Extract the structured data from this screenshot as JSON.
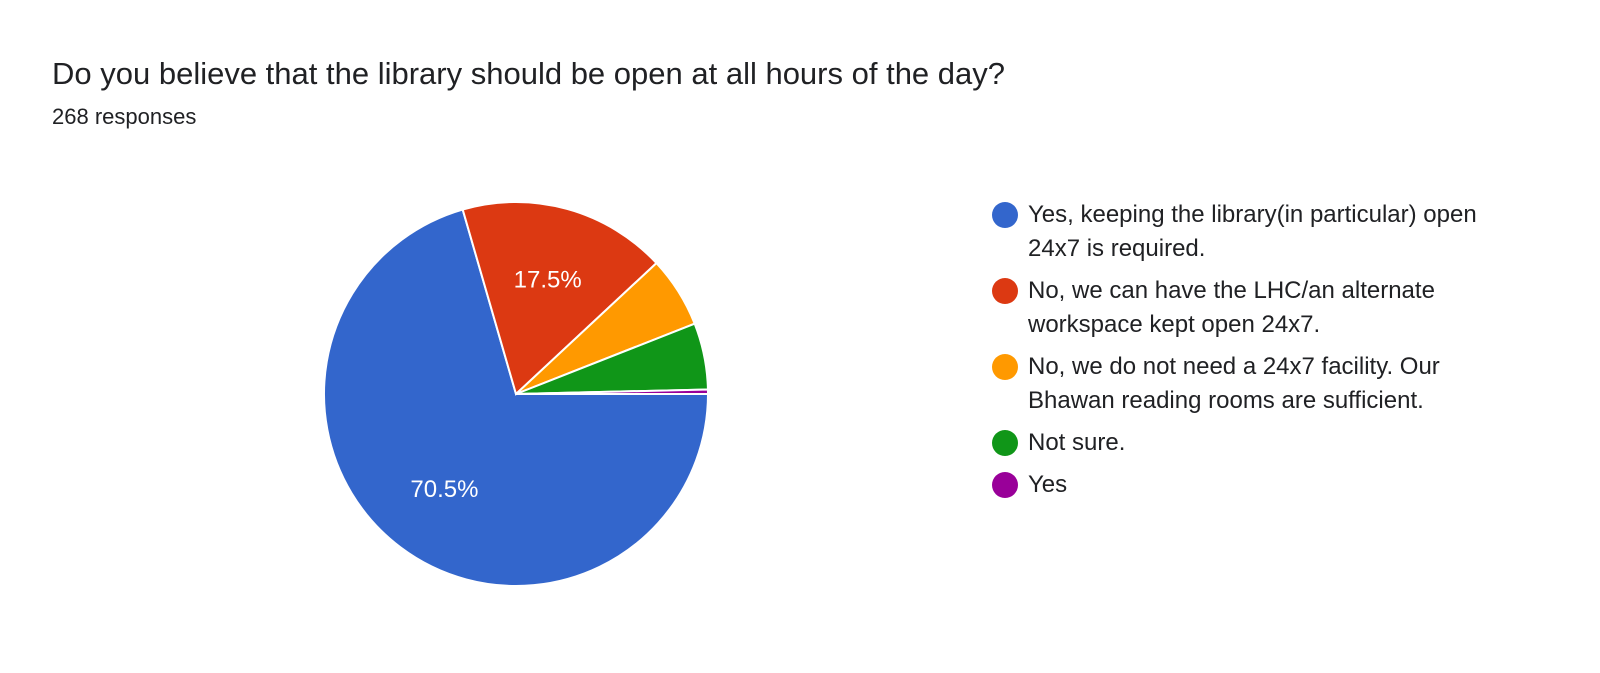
{
  "chart_data": {
    "type": "pie",
    "title": "Do you believe that the library should be open at all hours of the day?",
    "subtitle": "268 responses",
    "categories": [
      "Yes, keeping the library(in particular) open 24x7 is required.",
      "No, we can have the LHC/an alternate workspace kept open 24x7.",
      "No, we do not need a 24x7 facility. Our Bhawan reading rooms are sufficient.",
      "Not sure.",
      "Yes"
    ],
    "values": [
      189,
      47,
      16,
      15,
      1
    ],
    "data_labels": [
      "70.5%",
      "17.5%",
      "",
      "",
      ""
    ],
    "colors": [
      "#3366cc",
      "#dc3912",
      "#ff9900",
      "#109618",
      "#990099"
    ],
    "legend_position": "right"
  }
}
